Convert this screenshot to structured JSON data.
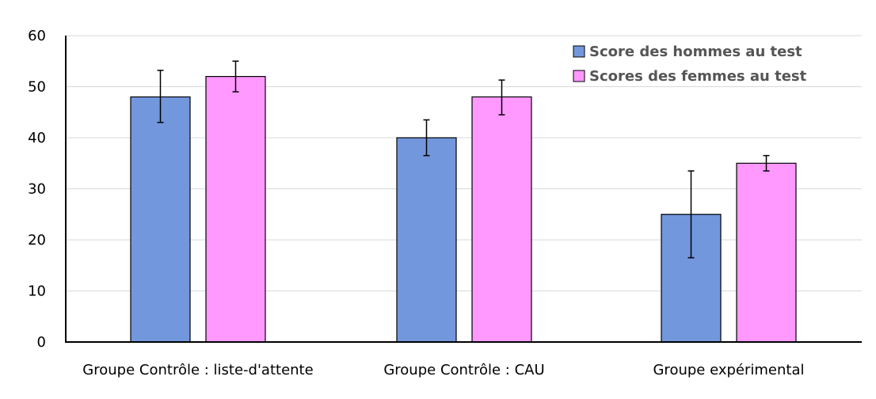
{
  "chart_data": {
    "type": "bar",
    "categories": [
      "Groupe Contrôle : liste-d'attente",
      "Groupe Contrôle : CAU",
      "Groupe expérimental"
    ],
    "series": [
      {
        "name": "Score des hommes au test",
        "values": [
          48,
          40,
          25
        ],
        "error_low": [
          43,
          36.5,
          16.5
        ],
        "error_high": [
          53.2,
          43.5,
          33.5
        ],
        "color": "#7397dd"
      },
      {
        "name": "Scores des femmes au test",
        "values": [
          52,
          48,
          35
        ],
        "error_low": [
          49,
          44.5,
          33.5
        ],
        "error_high": [
          55,
          51.3,
          36.5
        ],
        "color": "#ff99ff"
      }
    ],
    "title": "",
    "xlabel": "",
    "ylabel": "",
    "ylim": [
      0,
      60
    ],
    "yticks": [
      0,
      10,
      20,
      30,
      40,
      50,
      60
    ],
    "grid": true,
    "legend_position": "top-right"
  }
}
